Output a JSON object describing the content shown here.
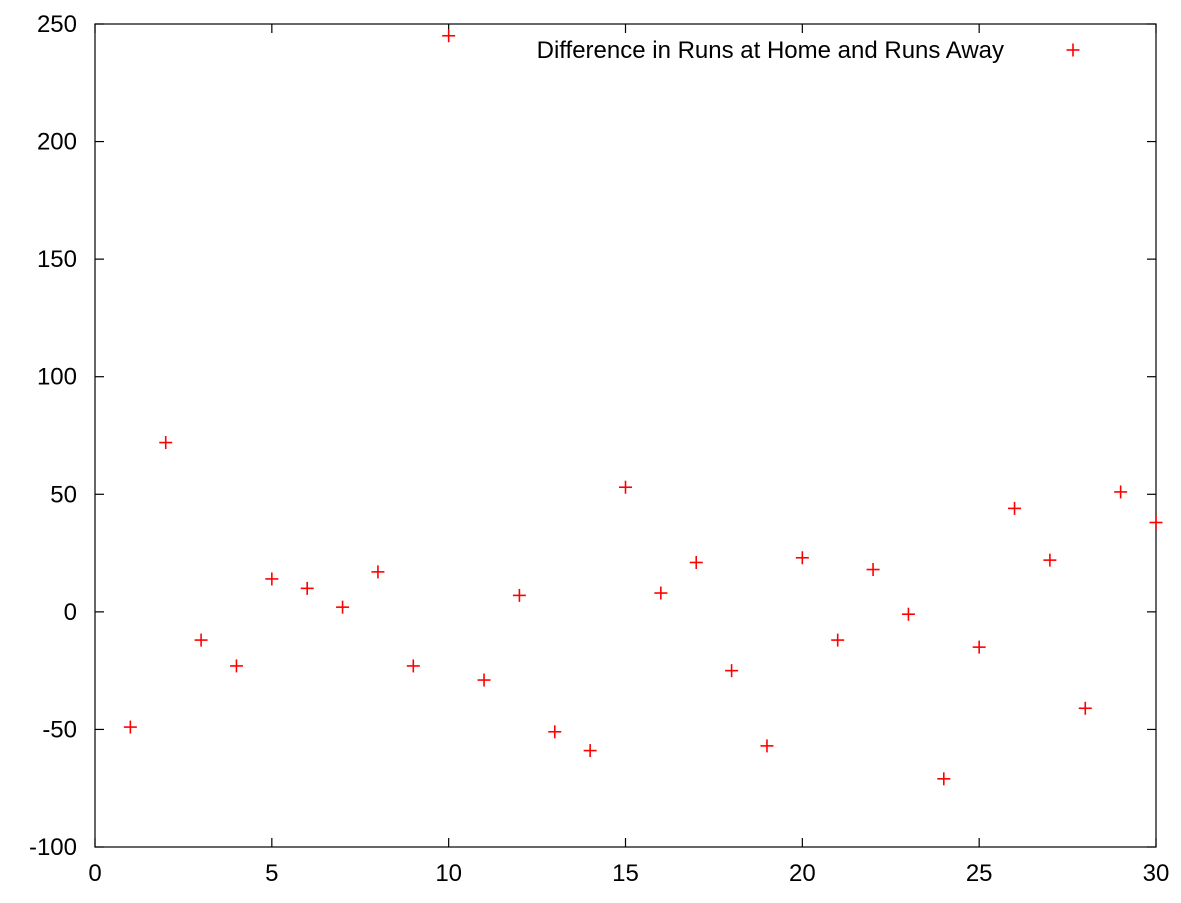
{
  "chart_data": {
    "type": "scatter",
    "title": "",
    "xlabel": "",
    "ylabel": "",
    "xlim": [
      0,
      30
    ],
    "ylim": [
      -100,
      250
    ],
    "xticks": [
      0,
      5,
      10,
      15,
      20,
      25,
      30
    ],
    "yticks": [
      -100,
      -50,
      0,
      50,
      100,
      150,
      200,
      250
    ],
    "grid": false,
    "legend_position": "top-right",
    "series": [
      {
        "name": "Difference in Runs at Home and Runs Away",
        "color": "#ff0000",
        "marker": "plus",
        "x": [
          1,
          2,
          3,
          4,
          5,
          6,
          7,
          8,
          9,
          10,
          11,
          12,
          13,
          14,
          15,
          16,
          17,
          18,
          19,
          20,
          21,
          22,
          23,
          24,
          25,
          26,
          27,
          28,
          29,
          30
        ],
        "y": [
          -49,
          72,
          -12,
          -23,
          14,
          10,
          2,
          17,
          -23,
          245,
          -29,
          7,
          -51,
          -59,
          53,
          8,
          21,
          -25,
          -57,
          23,
          -12,
          18,
          -1,
          -71,
          -15,
          44,
          22,
          -41,
          51,
          38
        ]
      }
    ]
  }
}
